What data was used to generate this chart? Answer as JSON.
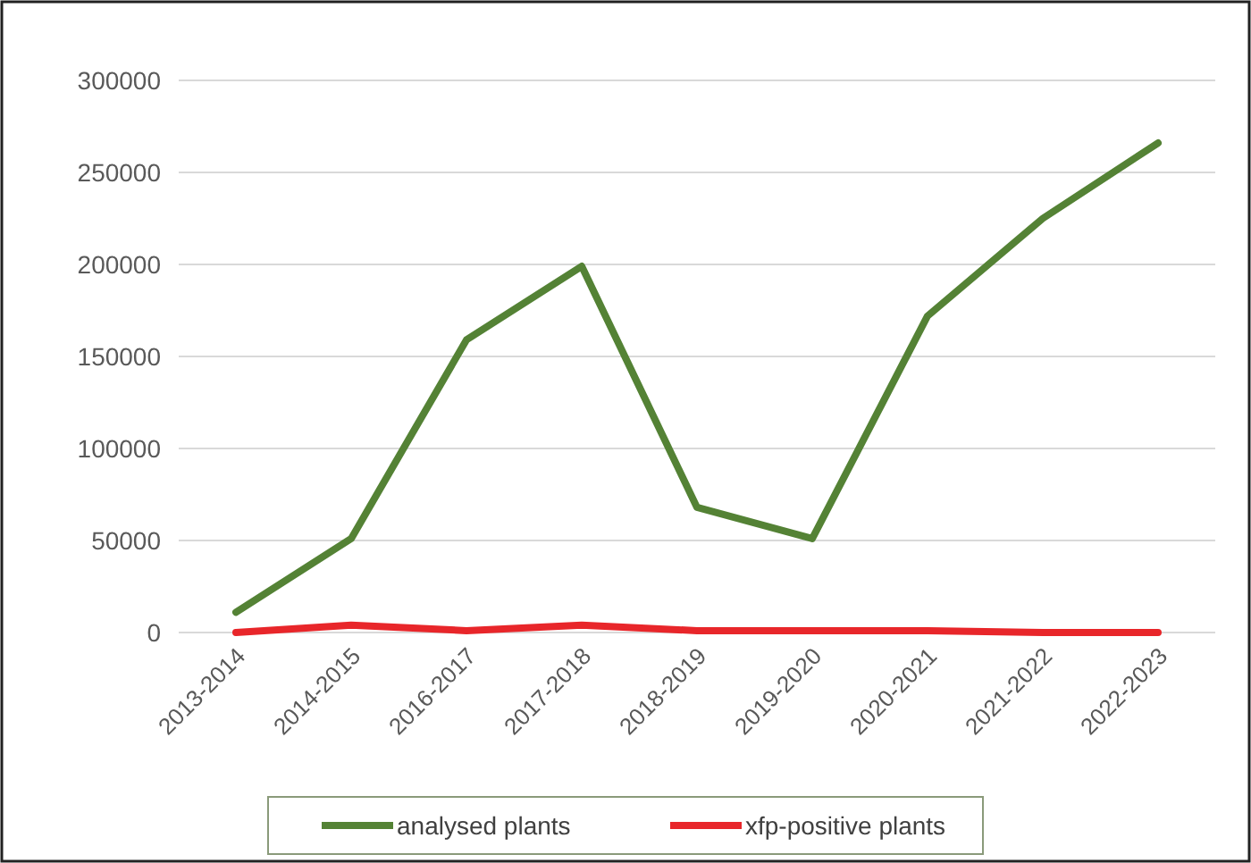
{
  "chart_data": {
    "type": "line",
    "categories": [
      "2013-2014",
      "2014-2015",
      "2016-2017",
      "2017-2018",
      "2018-2019",
      "2019-2020",
      "2020-2021",
      "2021-2022",
      "2022-2023"
    ],
    "series": [
      {
        "name": "analysed plants",
        "color": "#548235",
        "values": [
          11000,
          51000,
          159000,
          199000,
          68000,
          51000,
          172000,
          225000,
          266000
        ]
      },
      {
        "name": "xfp-positive plants",
        "color": "#e8262a",
        "values": [
          0,
          4000,
          1000,
          4000,
          1000,
          1000,
          1000,
          0,
          0
        ]
      }
    ],
    "ylim": [
      0,
      300000
    ],
    "yticks": [
      0,
      50000,
      100000,
      150000,
      200000,
      250000,
      300000
    ],
    "grid": "y",
    "legend": "bottom",
    "marker": "none",
    "line_style": "solid"
  }
}
